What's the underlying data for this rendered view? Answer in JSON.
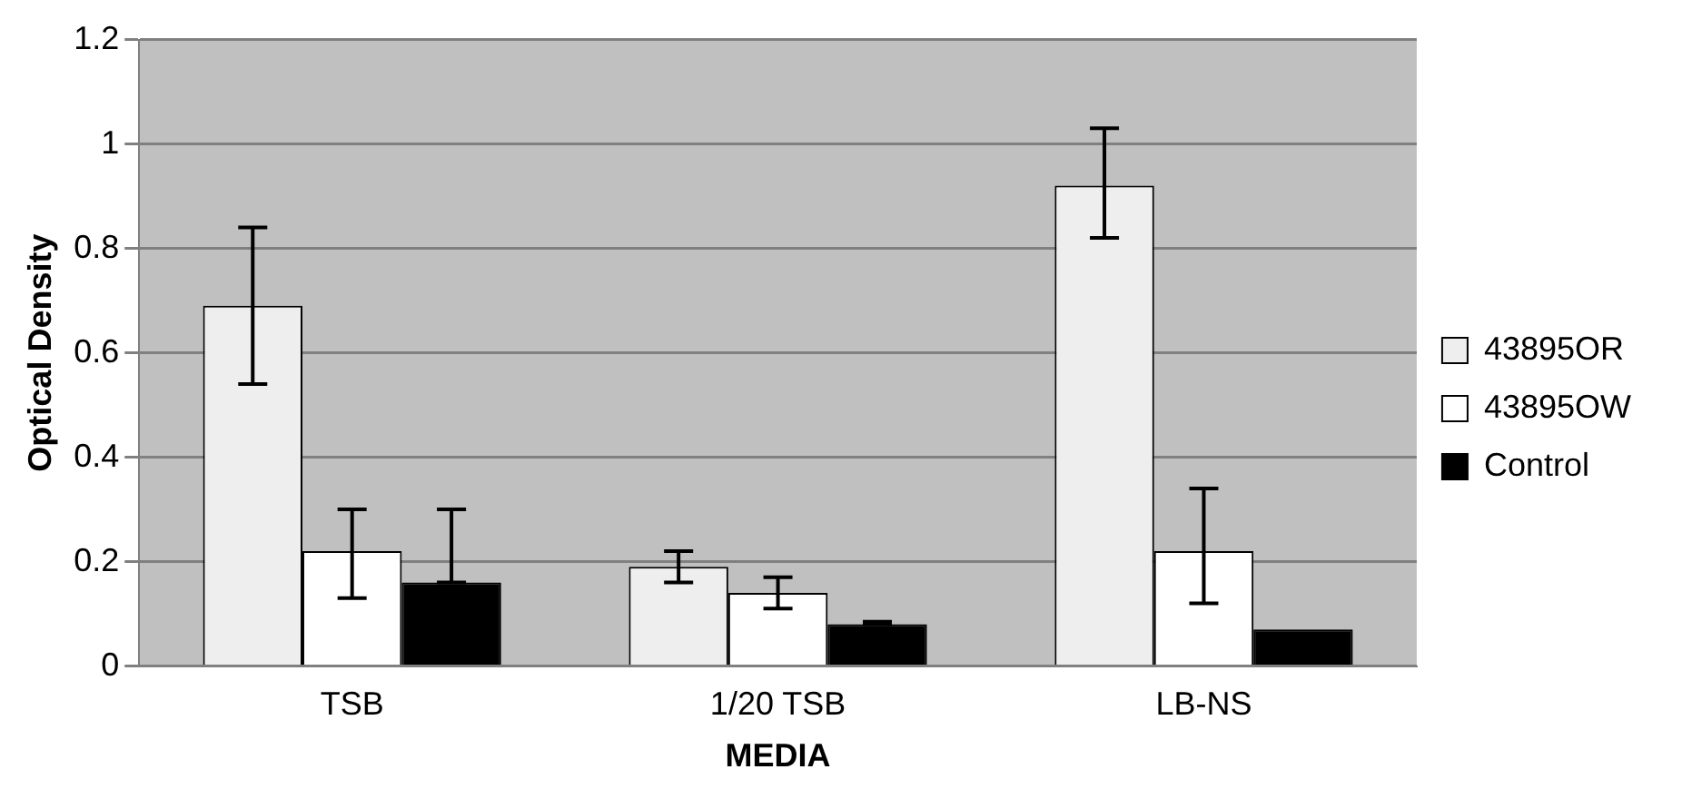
{
  "chart_data": {
    "type": "bar",
    "xlabel": "MEDIA",
    "ylabel": "Optical Density",
    "categories": [
      "TSB",
      "1/20 TSB",
      "LB-NS"
    ],
    "series": [
      {
        "name": "43895OR",
        "color": "#eeeeee",
        "values": [
          0.69,
          0.19,
          0.92
        ],
        "errors": [
          [
            0.54,
            0.84
          ],
          [
            0.16,
            0.22
          ],
          [
            0.82,
            1.03
          ]
        ]
      },
      {
        "name": "43895OW",
        "color": "#ffffff",
        "values": [
          0.22,
          0.14,
          0.22
        ],
        "errors": [
          [
            0.13,
            0.3
          ],
          [
            0.11,
            0.17
          ],
          [
            0.12,
            0.34
          ]
        ]
      },
      {
        "name": "Control",
        "color": "#000000",
        "values": [
          0.16,
          0.08,
          0.07
        ],
        "errors": [
          [
            0.16,
            0.3
          ],
          [
            0.08,
            0.085
          ],
          null
        ]
      }
    ],
    "ylim": [
      0,
      1.2
    ],
    "yticks": [
      0,
      0.2,
      0.4,
      0.6,
      0.8,
      1,
      1.2
    ],
    "grid": "y",
    "legend": "right"
  }
}
